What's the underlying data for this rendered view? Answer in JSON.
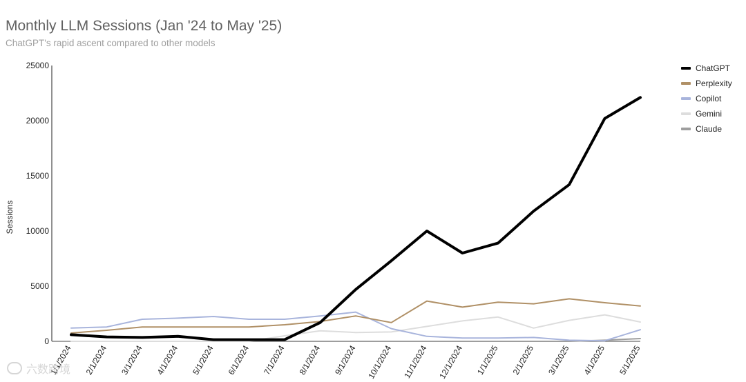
{
  "chart_data": {
    "type": "line",
    "title": "Monthly LLM Sessions (Jan '24 to May '25)",
    "subtitle": "ChatGPT's rapid ascent compared to other models",
    "ylabel": "Sessions",
    "xlabel": "",
    "ylim": [
      0,
      25000
    ],
    "yticks": [
      0,
      5000,
      10000,
      15000,
      20000,
      25000
    ],
    "categories": [
      "1/1/2024",
      "2/1/2024",
      "3/1/2024",
      "4/1/2024",
      "5/1/2024",
      "6/1/2024",
      "7/1/2024",
      "8/1/2024",
      "9/1/2024",
      "10/1/2024",
      "11/1/2024",
      "12/1/2024",
      "1/1/2025",
      "2/1/2025",
      "3/1/2025",
      "4/1/2025",
      "5/1/2025"
    ],
    "legend_position": "right",
    "series": [
      {
        "name": "ChatGPT",
        "color": "#000000",
        "width": 4,
        "values": [
          600,
          400,
          350,
          450,
          150,
          150,
          150,
          1700,
          4700,
          7300,
          10000,
          8000,
          8900,
          11800,
          14200,
          20200,
          22100
        ]
      },
      {
        "name": "Perplexity",
        "color": "#b09066",
        "width": 2,
        "values": [
          750,
          1000,
          1300,
          1300,
          1300,
          1300,
          1500,
          1800,
          2300,
          1700,
          3650,
          3100,
          3550,
          3400,
          3850,
          3500,
          3200
        ]
      },
      {
        "name": "Copilot",
        "color": "#a8b4dc",
        "width": 2,
        "values": [
          1200,
          1300,
          2000,
          2100,
          2250,
          2000,
          2000,
          2300,
          2650,
          1150,
          450,
          300,
          300,
          350,
          100,
          50,
          1050
        ]
      },
      {
        "name": "Gemini",
        "color": "#dddddd",
        "width": 2,
        "values": [
          0,
          0,
          0,
          0,
          0,
          0,
          500,
          950,
          800,
          850,
          1350,
          1850,
          2200,
          1200,
          1900,
          2400,
          1750
        ]
      },
      {
        "name": "Claude",
        "color": "#9e9e9e",
        "width": 2,
        "values": [
          0,
          0,
          0,
          0,
          0,
          0,
          0,
          0,
          0,
          0,
          0,
          0,
          0,
          0,
          0,
          100,
          250
        ]
      }
    ]
  },
  "watermark": {
    "text": "六数跨境"
  }
}
